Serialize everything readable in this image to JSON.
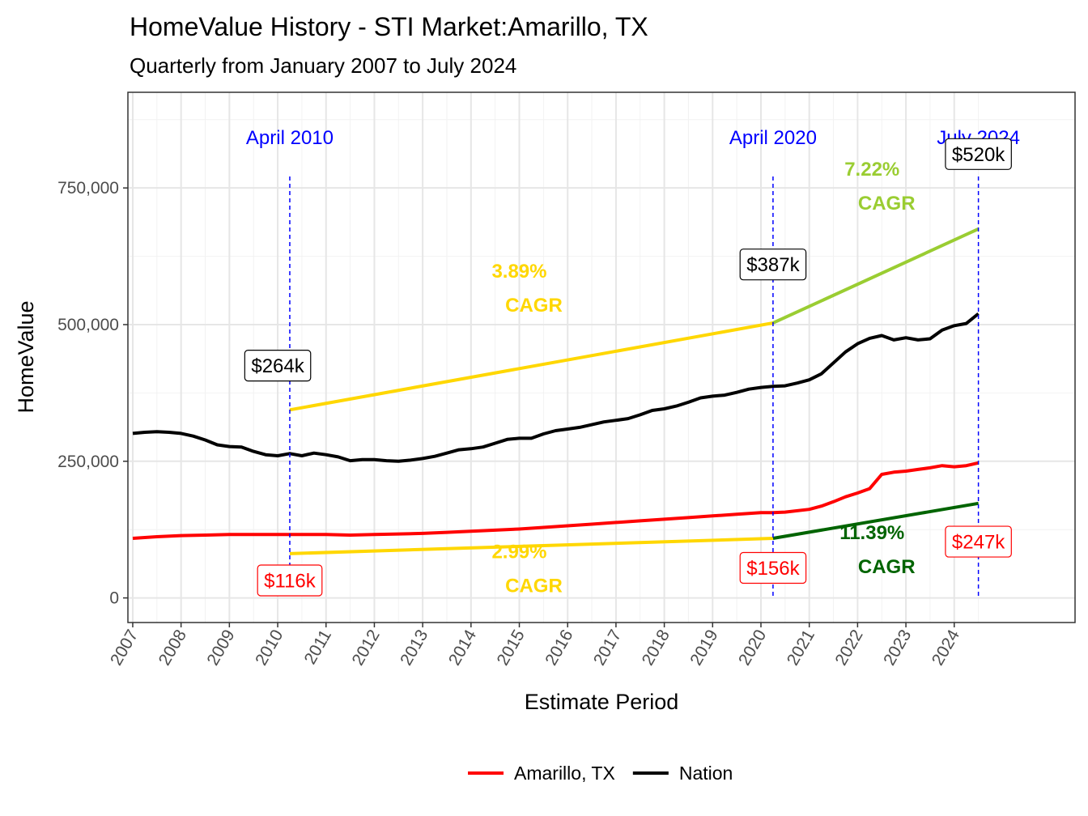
{
  "chart_data": {
    "type": "line",
    "title": "HomeValue History - STI Market:Amarillo, TX",
    "subtitle": "Quarterly from January 2007 to July 2024",
    "xlabel": "Estimate Period",
    "ylabel": "HomeValue",
    "xlim": [
      2006.9,
      2026.5
    ],
    "ylim": [
      -45000,
      925000
    ],
    "x_ticks": [
      "2007",
      "2008",
      "2009",
      "2010",
      "2011",
      "2012",
      "2013",
      "2014",
      "2015",
      "2016",
      "2017",
      "2018",
      "2019",
      "2020",
      "2021",
      "2022",
      "2023",
      "2024"
    ],
    "y_ticks": [
      {
        "value": 0,
        "label": "0"
      },
      {
        "value": 250000,
        "label": "250,000"
      },
      {
        "value": 500000,
        "label": "500,000"
      },
      {
        "value": 750000,
        "label": "750,000"
      }
    ],
    "grid": true,
    "legend_position": "bottom",
    "series": [
      {
        "name": "Amarillo, TX",
        "color": "#ff0000",
        "points": [
          [
            2007.0,
            109000
          ],
          [
            2007.5,
            112000
          ],
          [
            2008.0,
            114000
          ],
          [
            2008.5,
            115000
          ],
          [
            2009.0,
            116000
          ],
          [
            2009.5,
            116000
          ],
          [
            2010.0,
            116000
          ],
          [
            2010.25,
            116000
          ],
          [
            2010.5,
            116000
          ],
          [
            2011.0,
            116000
          ],
          [
            2011.5,
            115000
          ],
          [
            2012.0,
            116000
          ],
          [
            2012.5,
            117000
          ],
          [
            2013.0,
            118000
          ],
          [
            2013.5,
            120000
          ],
          [
            2014.0,
            122000
          ],
          [
            2014.5,
            124000
          ],
          [
            2015.0,
            126000
          ],
          [
            2015.5,
            129000
          ],
          [
            2016.0,
            132000
          ],
          [
            2016.5,
            135000
          ],
          [
            2017.0,
            138000
          ],
          [
            2017.5,
            141000
          ],
          [
            2018.0,
            144000
          ],
          [
            2018.5,
            147000
          ],
          [
            2019.0,
            150000
          ],
          [
            2019.5,
            153000
          ],
          [
            2020.0,
            156000
          ],
          [
            2020.25,
            156000
          ],
          [
            2020.5,
            157000
          ],
          [
            2021.0,
            162000
          ],
          [
            2021.25,
            168000
          ],
          [
            2021.5,
            176000
          ],
          [
            2021.75,
            185000
          ],
          [
            2022.0,
            192000
          ],
          [
            2022.25,
            200000
          ],
          [
            2022.5,
            226000
          ],
          [
            2022.75,
            230000
          ],
          [
            2023.0,
            232000
          ],
          [
            2023.25,
            235000
          ],
          [
            2023.5,
            238000
          ],
          [
            2023.75,
            242000
          ],
          [
            2024.0,
            240000
          ],
          [
            2024.25,
            242000
          ],
          [
            2024.5,
            247000
          ]
        ]
      },
      {
        "name": "Nation",
        "color": "#000000",
        "points": [
          [
            2007.0,
            301000
          ],
          [
            2007.25,
            303000
          ],
          [
            2007.5,
            304000
          ],
          [
            2007.75,
            303000
          ],
          [
            2008.0,
            301000
          ],
          [
            2008.25,
            296000
          ],
          [
            2008.5,
            289000
          ],
          [
            2008.75,
            280000
          ],
          [
            2009.0,
            277000
          ],
          [
            2009.25,
            276000
          ],
          [
            2009.5,
            268000
          ],
          [
            2009.75,
            262000
          ],
          [
            2010.0,
            260000
          ],
          [
            2010.25,
            264000
          ],
          [
            2010.5,
            260000
          ],
          [
            2010.75,
            265000
          ],
          [
            2011.0,
            262000
          ],
          [
            2011.25,
            258000
          ],
          [
            2011.5,
            251000
          ],
          [
            2011.75,
            253000
          ],
          [
            2012.0,
            253000
          ],
          [
            2012.25,
            251000
          ],
          [
            2012.5,
            250000
          ],
          [
            2012.75,
            252000
          ],
          [
            2013.0,
            255000
          ],
          [
            2013.25,
            259000
          ],
          [
            2013.5,
            265000
          ],
          [
            2013.75,
            271000
          ],
          [
            2014.0,
            273000
          ],
          [
            2014.25,
            276000
          ],
          [
            2014.5,
            283000
          ],
          [
            2014.75,
            290000
          ],
          [
            2015.0,
            292000
          ],
          [
            2015.25,
            292000
          ],
          [
            2015.5,
            300000
          ],
          [
            2015.75,
            306000
          ],
          [
            2016.0,
            309000
          ],
          [
            2016.25,
            312000
          ],
          [
            2016.5,
            317000
          ],
          [
            2016.75,
            322000
          ],
          [
            2017.0,
            325000
          ],
          [
            2017.25,
            328000
          ],
          [
            2017.5,
            335000
          ],
          [
            2017.75,
            343000
          ],
          [
            2018.0,
            346000
          ],
          [
            2018.25,
            351000
          ],
          [
            2018.5,
            358000
          ],
          [
            2018.75,
            366000
          ],
          [
            2019.0,
            369000
          ],
          [
            2019.25,
            371000
          ],
          [
            2019.5,
            376000
          ],
          [
            2019.75,
            382000
          ],
          [
            2020.0,
            385000
          ],
          [
            2020.25,
            387000
          ],
          [
            2020.5,
            388000
          ],
          [
            2020.75,
            393000
          ],
          [
            2021.0,
            399000
          ],
          [
            2021.25,
            410000
          ],
          [
            2021.5,
            430000
          ],
          [
            2021.75,
            450000
          ],
          [
            2022.0,
            465000
          ],
          [
            2022.25,
            475000
          ],
          [
            2022.5,
            480000
          ],
          [
            2022.75,
            472000
          ],
          [
            2023.0,
            476000
          ],
          [
            2023.25,
            472000
          ],
          [
            2023.5,
            474000
          ],
          [
            2023.75,
            490000
          ],
          [
            2024.0,
            498000
          ],
          [
            2024.25,
            502000
          ],
          [
            2024.5,
            520000
          ]
        ]
      }
    ],
    "cagr_lines": [
      {
        "color": "#ffd700",
        "from": [
          2010.25,
          344000
        ],
        "to": [
          2020.25,
          503000
        ]
      },
      {
        "color": "#9acd32",
        "from": [
          2020.25,
          503000
        ],
        "to": [
          2024.5,
          675000
        ]
      },
      {
        "color": "#ffd700",
        "from": [
          2010.25,
          81000
        ],
        "to": [
          2020.25,
          109000
        ]
      },
      {
        "color": "#006400",
        "from": [
          2020.25,
          109000
        ],
        "to": [
          2024.5,
          173000
        ]
      }
    ],
    "period_markers": [
      {
        "x": 2010.25,
        "label": "April 2010"
      },
      {
        "x": 2020.25,
        "label": "April 2020"
      },
      {
        "x": 2024.5,
        "label": "July 2024"
      }
    ],
    "value_labels": [
      {
        "x": 2010.0,
        "y": 425000,
        "text": "$264k",
        "color": "#000000"
      },
      {
        "x": 2020.25,
        "y": 610000,
        "text": "$387k",
        "color": "#000000"
      },
      {
        "x": 2024.5,
        "y": 812000,
        "text": "$520k",
        "color": "#000000"
      },
      {
        "x": 2010.25,
        "y": 32000,
        "text": "$116k",
        "color": "#ff0000"
      },
      {
        "x": 2020.25,
        "y": 55000,
        "text": "$156k",
        "color": "#ff0000"
      },
      {
        "x": 2024.5,
        "y": 103000,
        "text": "$247k",
        "color": "#ff0000"
      }
    ],
    "cagr_labels": [
      {
        "x": 2015.15,
        "y": 568000,
        "rate": "3.89%",
        "word": "CAGR",
        "color": "#ffd700"
      },
      {
        "x": 2022.45,
        "y": 755000,
        "rate": "7.22%",
        "word": "CAGR",
        "color": "#9acd32"
      },
      {
        "x": 2015.15,
        "y": 55000,
        "rate": "2.99%",
        "word": "CAGR",
        "color": "#ffd700"
      },
      {
        "x": 2022.45,
        "y": 90000,
        "rate": "11.39%",
        "word": "CAGR",
        "color": "#006400"
      }
    ]
  }
}
